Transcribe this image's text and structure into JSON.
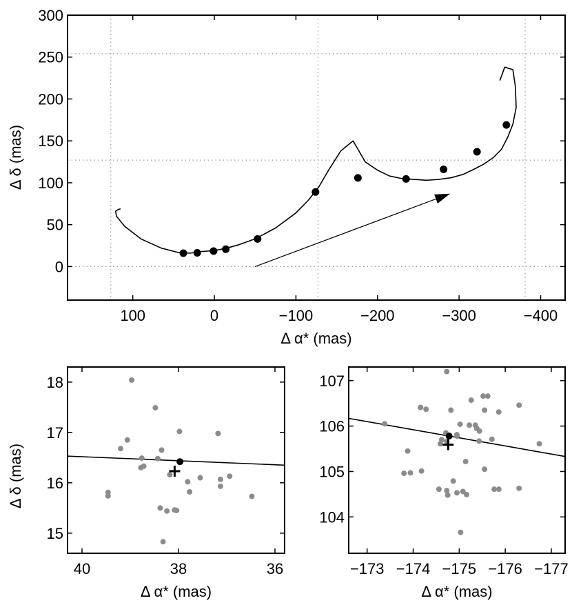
{
  "chart_data": [
    {
      "type": "line",
      "panel": "main",
      "xlabel": "Δ α* (mas)",
      "ylabel": "Δ δ (mas)",
      "xlim": [
        180,
        -430
      ],
      "ylim": [
        -40,
        300
      ],
      "x_reversed": true,
      "xticks": [
        100,
        0,
        -100,
        -200,
        -300,
        -400
      ],
      "xtick_labels": [
        "100",
        "0",
        "−100",
        "−200",
        "−300",
        "−400"
      ],
      "yticks": [
        0,
        50,
        100,
        150,
        200,
        250,
        300
      ],
      "ytick_labels": [
        "0",
        "50",
        "100",
        "150",
        "200",
        "250",
        "300"
      ],
      "grid": {
        "x": [
          127,
          -127,
          -381
        ],
        "y": [
          0,
          127,
          254
        ]
      },
      "path": {
        "name": "astrometric trajectory",
        "x": [
          115,
          118,
          121,
          120,
          110,
          90,
          65,
          45,
          30,
          15,
          0,
          -15,
          -30,
          -50,
          -75,
          -100,
          -115,
          -128,
          -140,
          -155,
          -170,
          -185,
          -200,
          -215,
          -230,
          -245,
          -260,
          -275,
          -290,
          -305,
          -318,
          -330,
          -342,
          -352,
          -360,
          -366,
          -370,
          -369,
          -366,
          -356,
          -350
        ],
        "y": [
          69,
          68,
          66,
          60,
          48,
          33,
          22,
          17,
          16,
          18,
          19,
          22,
          26,
          33,
          46,
          64,
          79,
          95,
          115,
          138,
          150,
          125,
          115,
          108,
          105,
          104,
          103,
          104,
          106,
          110,
          116,
          122,
          130,
          140,
          155,
          170,
          190,
          215,
          235,
          238,
          222
        ]
      },
      "epoch_points": {
        "name": "epoch positions",
        "x": [
          38,
          21,
          1,
          -14,
          -53,
          -124,
          -176,
          -235,
          -281,
          -322,
          -358
        ],
        "y": [
          16,
          16.4,
          18.5,
          20.7,
          33,
          89,
          105.8,
          104.6,
          116,
          137,
          169
        ]
      },
      "arrow": {
        "from": [
          -50,
          0
        ],
        "to": [
          -289,
          87
        ]
      }
    },
    {
      "type": "scatter",
      "panel": "zoom-1",
      "xlabel": "Δ α* (mas)",
      "ylabel": "Δ δ (mas)",
      "xlim": [
        40.3,
        35.8
      ],
      "ylim": [
        14.6,
        18.3
      ],
      "x_reversed": true,
      "xticks": [
        40,
        38,
        36
      ],
      "xtick_labels": [
        "40",
        "38",
        "36"
      ],
      "yticks": [
        15,
        16,
        17,
        18
      ],
      "ytick_labels": [
        "15",
        "16",
        "17",
        "18"
      ],
      "samples": {
        "x": [
          38.97,
          38.76,
          39.06,
          38.72,
          38.43,
          37.98,
          37.18,
          39.46,
          39.46,
          39.2,
          38.78,
          38.48,
          38.35,
          38.18,
          38.04,
          37.81,
          37.77,
          37.55,
          37.13,
          36.94,
          36.48,
          37.13,
          38.38,
          38.24,
          38.08,
          38.32
        ],
        "y": [
          18.04,
          16.49,
          16.85,
          16.33,
          16.48,
          17.02,
          16.98,
          15.81,
          15.74,
          16.68,
          16.3,
          17.49,
          16.65,
          16.16,
          15.45,
          16.02,
          15.82,
          16.1,
          16.07,
          16.13,
          15.73,
          15.93,
          15.5,
          15.44,
          15.46,
          14.83
        ]
      },
      "best_fit": {
        "x": 37.97,
        "y": 16.42
      },
      "mean_marker": {
        "x": 38.08,
        "y": 16.23
      },
      "line": {
        "x": [
          40.3,
          35.8
        ],
        "y": [
          16.53,
          16.35
        ]
      }
    },
    {
      "type": "scatter",
      "panel": "zoom-2",
      "xlabel": "Δ α* (mas)",
      "ylabel": "",
      "xlim": [
        -172.6,
        -177.3
      ],
      "ylim": [
        103.2,
        107.3
      ],
      "x_reversed": true,
      "xticks": [
        -173,
        -174,
        -175,
        -176,
        -177
      ],
      "xtick_labels": [
        "−173",
        "−174",
        "−175",
        "−176",
        "−177"
      ],
      "yticks": [
        104,
        105,
        106,
        107
      ],
      "ytick_labels": [
        "104",
        "105",
        "106",
        "107"
      ],
      "samples": {
        "x": [
          -174.73,
          -175.52,
          -175.62,
          -176.3,
          -175.86,
          -175.55,
          -175.35,
          -175.38,
          -175.44,
          -175.71,
          -175.26,
          -175.22,
          -175.02,
          -174.82,
          -174.71,
          -174.95,
          -174.62,
          -174.73,
          -174.95,
          -174.59,
          -174.28,
          -174.16,
          -174.18,
          -173.38,
          -173.88,
          -173.8,
          -173.94,
          -174.56,
          -174.73,
          -175.08,
          -174.95,
          -175.16,
          -175.86,
          -175.76,
          -176.3,
          -176.74,
          -175.55,
          -175.14,
          -174.75,
          -174.87,
          -175.43,
          -175.03
        ],
        "y": [
          107.2,
          106.66,
          106.66,
          106.46,
          106.31,
          106.35,
          106.02,
          105.95,
          105.89,
          105.71,
          106.57,
          106.02,
          106.04,
          106.35,
          105.85,
          105.78,
          105.7,
          105.66,
          105.81,
          105.61,
          106.37,
          106.41,
          105.01,
          106.05,
          105.45,
          104.96,
          104.97,
          104.61,
          104.58,
          104.56,
          104.53,
          104.49,
          104.61,
          104.61,
          104.63,
          105.61,
          105.05,
          105.22,
          104.48,
          104.79,
          105.67,
          103.66
        ]
      },
      "best_fit": {
        "x": -174.78,
        "y": 105.78
      },
      "mean_marker": {
        "x": -174.76,
        "y": 105.59
      },
      "line": {
        "x": [
          -172.6,
          -177.3
        ],
        "y": [
          106.17,
          105.33
        ]
      }
    }
  ]
}
